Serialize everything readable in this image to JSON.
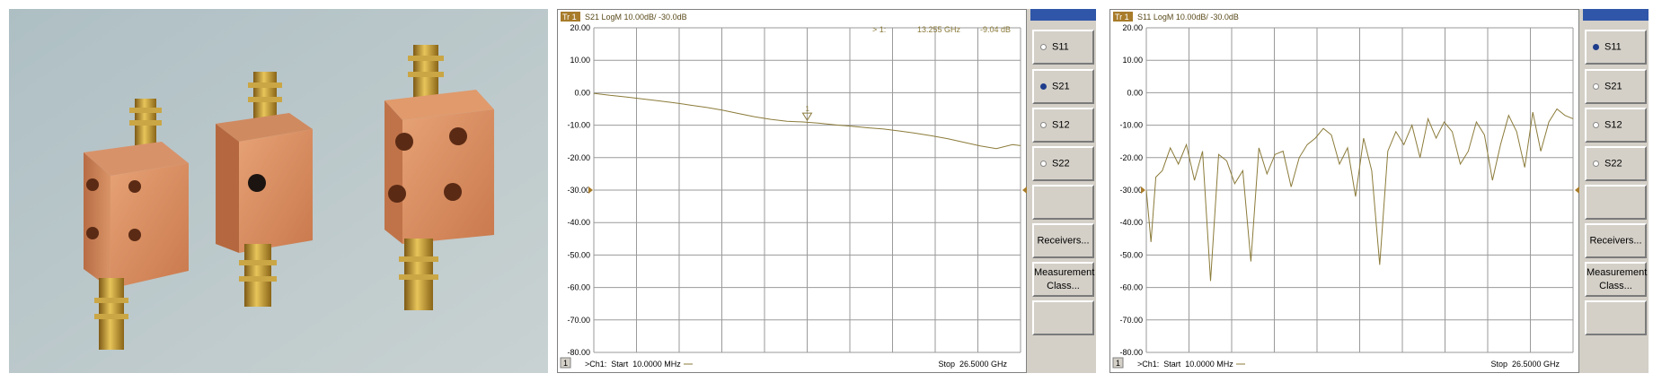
{
  "photo": {
    "description_icon": "copper-filter-blocks-photo"
  },
  "colors": {
    "trace": "#8b7b3a",
    "header_bg": "#a87c2a",
    "grid": "#9a9a9a",
    "panel": "#d4d0c8",
    "radio_on": "#1e3c8c"
  },
  "chart_data": [
    {
      "type": "line",
      "title": "S21 LogM 10.00dB/ -30.0dB",
      "trace_box": "Tr 1",
      "channel_box": "1",
      "marker": {
        "label": "> 1:",
        "freq": "13.255 GHz",
        "value": "-9.04 dB",
        "x": 13.255,
        "y": -9.04
      },
      "footer": {
        "start": ">Ch1:  Start  10.0000 MHz",
        "stop": "Stop  26.5000 GHz"
      },
      "reference_level": -30,
      "ylim": [
        -80,
        20
      ],
      "yticks": [
        "20.00",
        "10.00",
        "0.00",
        "-10.00",
        "-20.00",
        "-30.00",
        "-40.00",
        "-50.00",
        "-60.00",
        "-70.00",
        "-80.00"
      ],
      "xlim": [
        0.01,
        26.5
      ],
      "grid": true,
      "series": [
        {
          "x": [
            0.01,
            1,
            2,
            3,
            4,
            5,
            6,
            7,
            8,
            9,
            10,
            11,
            12,
            13,
            14,
            15,
            16,
            17,
            18,
            19,
            20,
            21,
            22,
            23,
            24,
            25,
            26,
            26.5
          ],
          "values": [
            -0.2,
            -0.8,
            -1.3,
            -1.9,
            -2.5,
            -3.1,
            -3.8,
            -4.5,
            -5.4,
            -6.4,
            -7.4,
            -8.2,
            -8.8,
            -9.0,
            -9.4,
            -9.9,
            -10.3,
            -10.8,
            -11.2,
            -11.8,
            -12.5,
            -13.3,
            -14.2,
            -15.3,
            -16.4,
            -17.2,
            -16.0,
            -16.3
          ]
        }
      ],
      "sidebar": {
        "items": [
          {
            "label": "S11",
            "radio": true,
            "selected": false
          },
          {
            "label": "S21",
            "radio": true,
            "selected": true
          },
          {
            "label": "S12",
            "radio": true,
            "selected": false
          },
          {
            "label": "S22",
            "radio": true,
            "selected": false
          },
          {
            "label": "",
            "radio": false
          },
          {
            "label": "Receivers...",
            "radio": false
          },
          {
            "label": "Measurement\nClass...",
            "radio": false
          },
          {
            "label": "",
            "radio": false
          }
        ]
      }
    },
    {
      "type": "line",
      "title": "S11 LogM 10.00dB/ -30.0dB",
      "trace_box": "Tr 1",
      "channel_box": "1",
      "footer": {
        "start": ">Ch1:  Start  10.0000 MHz",
        "stop": "Stop  26.5000 GHz"
      },
      "reference_level": -30,
      "ylim": [
        -80,
        20
      ],
      "yticks": [
        "20.00",
        "10.00",
        "0.00",
        "-10.00",
        "-20.00",
        "-30.00",
        "-40.00",
        "-50.00",
        "-60.00",
        "-70.00",
        "-80.00"
      ],
      "xlim": [
        0.01,
        26.5
      ],
      "grid": true,
      "series": [
        {
          "x": [
            0.01,
            0.3,
            0.6,
            1,
            1.5,
            2,
            2.5,
            3,
            3.5,
            4,
            4.5,
            5,
            5.5,
            6,
            6.5,
            7,
            7.5,
            8,
            8.5,
            9,
            9.5,
            10,
            10.5,
            11,
            11.5,
            12,
            12.5,
            13,
            13.5,
            14,
            14.5,
            15,
            15.5,
            16,
            16.5,
            17,
            17.5,
            18,
            18.5,
            19,
            19.5,
            20,
            20.5,
            21,
            21.5,
            22,
            22.5,
            23,
            23.5,
            24,
            24.5,
            25,
            25.5,
            26,
            26.5
          ],
          "values": [
            -30,
            -46,
            -26,
            -24,
            -17,
            -22,
            -16,
            -27,
            -18,
            -58,
            -19,
            -21,
            -28,
            -24,
            -52,
            -17,
            -25,
            -19,
            -18,
            -29,
            -20,
            -16,
            -14,
            -11,
            -13,
            -22,
            -17,
            -32,
            -14,
            -24,
            -53,
            -18,
            -12,
            -16,
            -10,
            -20,
            -8,
            -14,
            -9,
            -12,
            -22,
            -18,
            -9,
            -13,
            -27,
            -16,
            -7,
            -12,
            -23,
            -6,
            -18,
            -9,
            -5,
            -7,
            -8
          ]
        }
      ],
      "sidebar": {
        "items": [
          {
            "label": "S11",
            "radio": true,
            "selected": true
          },
          {
            "label": "S21",
            "radio": true,
            "selected": false
          },
          {
            "label": "S12",
            "radio": true,
            "selected": false
          },
          {
            "label": "S22",
            "radio": true,
            "selected": false
          },
          {
            "label": "",
            "radio": false
          },
          {
            "label": "Receivers...",
            "radio": false
          },
          {
            "label": "Measurement\nClass...",
            "radio": false
          },
          {
            "label": "",
            "radio": false
          }
        ]
      }
    }
  ]
}
